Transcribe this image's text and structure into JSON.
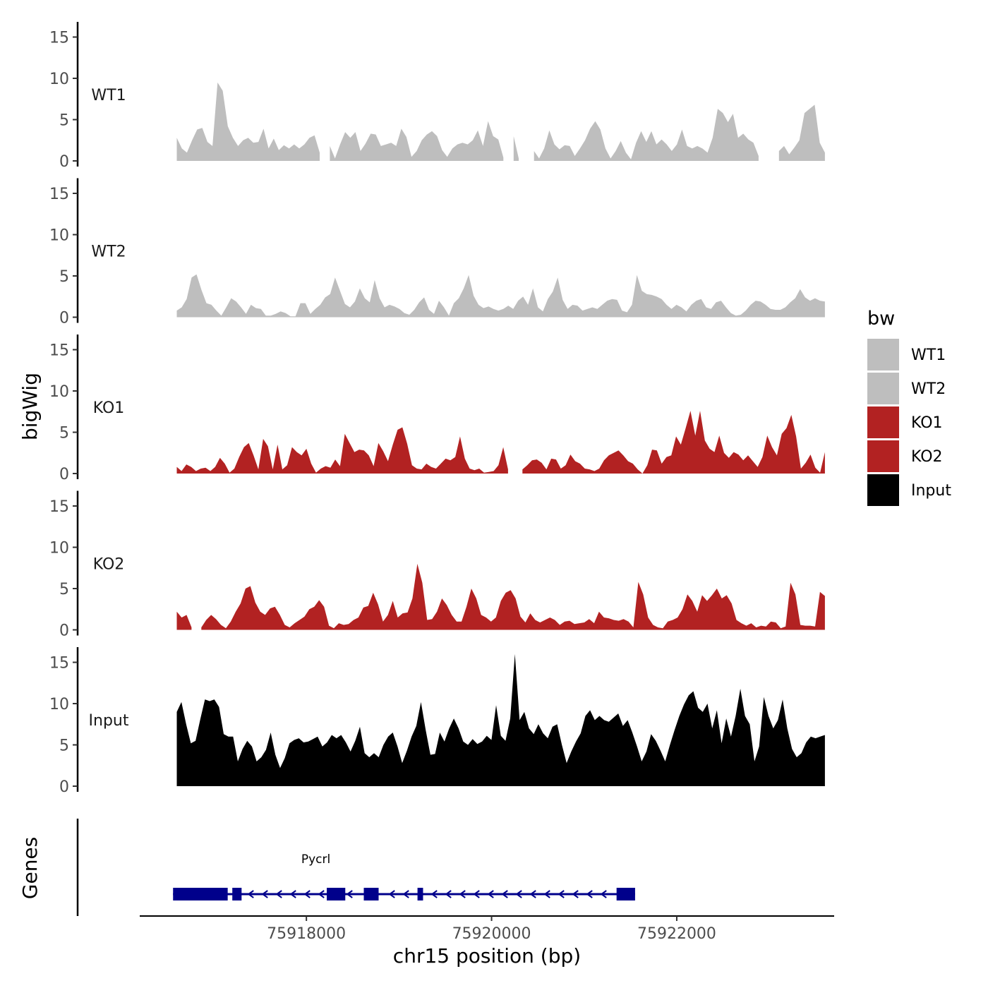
{
  "chart_data": {
    "type": "area",
    "title": "",
    "ylabel": "bigWig",
    "xlabel": "chr15 position (bp)",
    "genes_label": "Genes",
    "chromosome": "chr15",
    "xlim": [
      75916200,
      75923700
    ],
    "data_range": [
      75916600,
      75923600
    ],
    "ylim": [
      0,
      16.5
    ],
    "yticks": [
      0,
      5,
      10,
      15
    ],
    "xticks": [
      75918000,
      75920000,
      75922000
    ],
    "xtick_labels": [
      "75918000",
      "75920000",
      "75922000"
    ],
    "legend": {
      "title": "bw",
      "position": "right",
      "items": [
        {
          "label": "WT1",
          "color": "#bebebe"
        },
        {
          "label": "WT2",
          "color": "#bebebe"
        },
        {
          "label": "KO1",
          "color": "#b22222"
        },
        {
          "label": "KO2",
          "color": "#b22222"
        },
        {
          "label": "Input",
          "color": "#000000"
        }
      ]
    },
    "series": [
      {
        "name": "WT1",
        "color": "#bebebe",
        "x_start": 75916600,
        "x_end": 75923600,
        "values": [
          2.8,
          1.5,
          1.0,
          2.5,
          3.8,
          4.0,
          2.3,
          1.8,
          9.5,
          8.5,
          4.2,
          2.8,
          1.8,
          2.5,
          2.8,
          2.2,
          2.3,
          3.9,
          1.5,
          2.7,
          1.3,
          1.9,
          1.5,
          2.0,
          1.5,
          2.0,
          2.8,
          3.1,
          1.0,
          null,
          1.8,
          0.3,
          2.0,
          3.5,
          2.8,
          3.5,
          1.2,
          2.1,
          3.3,
          3.2,
          1.8,
          2.0,
          2.2,
          1.8,
          3.9,
          2.9,
          0.5,
          1.2,
          2.5,
          3.2,
          3.6,
          3.0,
          1.3,
          0.5,
          1.5,
          2.0,
          2.2,
          2.0,
          2.5,
          3.7,
          1.8,
          4.8,
          3.0,
          2.6,
          0.4,
          null,
          3.0,
          0.3,
          null,
          null,
          1.2,
          0.3,
          1.5,
          3.7,
          2.0,
          1.4,
          1.9,
          1.8,
          0.6,
          1.5,
          2.5,
          3.9,
          4.8,
          3.8,
          1.5,
          0.3,
          1.2,
          2.4,
          1.0,
          0.2,
          2.2,
          3.6,
          2.3,
          3.6,
          2.0,
          2.6,
          2.0,
          1.2,
          2.0,
          3.8,
          1.8,
          1.5,
          1.8,
          1.5,
          1.0,
          2.8,
          6.3,
          5.8,
          4.7,
          5.7,
          2.8,
          3.3,
          2.6,
          2.2,
          0.6,
          null,
          null,
          null,
          1.2,
          1.8,
          0.8,
          1.6,
          2.5,
          5.8,
          6.3,
          6.8,
          2.2,
          1.0
        ]
      },
      {
        "name": "WT2",
        "color": "#bebebe",
        "x_start": 75916600,
        "x_end": 75923600,
        "values": [
          0.8,
          1.2,
          2.2,
          4.8,
          5.2,
          3.3,
          1.7,
          1.5,
          0.8,
          0.2,
          1.2,
          2.3,
          1.9,
          1.2,
          0.4,
          1.5,
          1.1,
          1.0,
          0.2,
          0.2,
          0.4,
          0.7,
          0.5,
          0.1,
          0.1,
          1.7,
          1.7,
          0.4,
          1.0,
          1.5,
          2.4,
          2.8,
          4.8,
          3.2,
          1.6,
          1.2,
          1.9,
          3.5,
          2.3,
          1.8,
          4.5,
          2.3,
          1.2,
          1.5,
          1.3,
          1.0,
          0.5,
          0.3,
          0.9,
          1.8,
          2.4,
          0.9,
          0.4,
          2.0,
          1.2,
          0.2,
          1.7,
          2.3,
          3.5,
          5.1,
          2.6,
          1.5,
          1.1,
          1.3,
          1.0,
          0.8,
          1.0,
          1.4,
          1.0,
          2.0,
          2.5,
          1.5,
          3.5,
          1.2,
          0.7,
          2.2,
          3.1,
          4.8,
          2.1,
          1.0,
          1.5,
          1.4,
          0.8,
          1.0,
          1.2,
          1.0,
          1.5,
          2.0,
          2.2,
          2.1,
          0.8,
          0.6,
          1.5,
          5.1,
          3.2,
          2.8,
          2.7,
          2.5,
          2.2,
          1.5,
          1.0,
          1.5,
          1.2,
          0.7,
          1.5,
          2.0,
          2.2,
          1.2,
          1.0,
          1.8,
          2.0,
          1.2,
          0.5,
          0.2,
          0.3,
          0.8,
          1.5,
          2.0,
          1.9,
          1.5,
          1.0,
          0.9,
          0.9,
          1.2,
          1.8,
          2.3,
          3.4,
          2.4,
          2.0,
          2.3,
          2.0,
          1.9
        ]
      },
      {
        "name": "KO1",
        "color": "#b22222",
        "x_start": 75916600,
        "x_end": 75923600,
        "values": [
          0.8,
          0.3,
          1.1,
          0.8,
          0.3,
          0.6,
          0.7,
          0.3,
          0.8,
          1.9,
          1.2,
          0.1,
          0.6,
          2.0,
          3.2,
          3.7,
          2.2,
          0.5,
          4.2,
          3.3,
          0.5,
          3.5,
          0.5,
          1.0,
          3.2,
          2.6,
          2.2,
          3.0,
          1.2,
          0.1,
          0.6,
          0.9,
          0.7,
          1.7,
          0.9,
          4.8,
          3.7,
          2.6,
          2.9,
          2.8,
          2.2,
          0.9,
          3.7,
          2.7,
          1.5,
          3.5,
          5.3,
          5.6,
          3.6,
          1.0,
          0.6,
          0.5,
          1.2,
          0.8,
          0.6,
          1.2,
          1.8,
          1.6,
          2.0,
          4.5,
          1.8,
          0.6,
          0.4,
          0.6,
          0.1,
          0.2,
          0.3,
          1.0,
          3.2,
          0.5,
          null,
          null,
          0.5,
          1.0,
          1.6,
          1.7,
          1.3,
          0.5,
          1.8,
          1.7,
          0.6,
          1.0,
          2.3,
          1.5,
          1.2,
          0.6,
          0.5,
          0.3,
          0.6,
          1.6,
          2.2,
          2.5,
          2.8,
          2.2,
          1.5,
          1.2,
          0.5,
          0.0,
          1.0,
          2.9,
          2.8,
          1.2,
          2.0,
          2.2,
          4.5,
          3.5,
          5.5,
          7.6,
          4.6,
          7.6,
          4.0,
          3.0,
          2.6,
          4.6,
          2.5,
          1.9,
          2.6,
          2.3,
          1.6,
          2.2,
          1.5,
          0.8,
          2.0,
          4.6,
          3.2,
          2.2,
          4.8,
          5.5,
          7.1,
          4.5,
          0.6,
          1.3,
          2.3,
          0.7,
          0.1,
          2.6
        ]
      },
      {
        "name": "KO2",
        "color": "#b22222",
        "x_start": 75916600,
        "x_end": 75923600,
        "values": [
          2.2,
          1.5,
          1.8,
          0.3,
          null,
          0.3,
          1.2,
          1.8,
          1.3,
          0.6,
          0.2,
          1.0,
          2.2,
          3.2,
          5.0,
          5.3,
          3.3,
          2.2,
          1.8,
          2.6,
          2.8,
          1.8,
          0.6,
          0.3,
          0.8,
          1.2,
          1.6,
          2.5,
          2.8,
          3.6,
          2.8,
          0.5,
          0.2,
          0.8,
          0.6,
          0.7,
          1.2,
          1.5,
          2.7,
          2.9,
          4.5,
          3.1,
          1.0,
          1.8,
          3.5,
          1.5,
          2.0,
          2.1,
          3.8,
          8.0,
          5.7,
          1.2,
          1.3,
          2.2,
          3.8,
          3.0,
          1.8,
          1.0,
          1.0,
          2.8,
          5.0,
          3.8,
          1.8,
          1.5,
          1.0,
          1.5,
          3.5,
          4.5,
          4.8,
          3.8,
          1.6,
          0.9,
          2.0,
          1.2,
          0.9,
          1.2,
          1.5,
          1.2,
          0.6,
          1.0,
          1.1,
          0.7,
          0.8,
          0.9,
          1.3,
          0.8,
          2.2,
          1.5,
          1.4,
          1.2,
          1.1,
          1.3,
          1.0,
          0.3,
          5.8,
          4.3,
          1.5,
          0.6,
          0.3,
          0.2,
          1.0,
          1.2,
          1.5,
          2.5,
          4.3,
          3.5,
          2.2,
          4.2,
          3.5,
          4.2,
          5.0,
          3.8,
          4.2,
          3.2,
          1.2,
          0.8,
          0.5,
          0.8,
          0.3,
          0.5,
          0.4,
          1.0,
          0.9,
          0.2,
          0.4,
          5.7,
          4.3,
          0.6,
          0.5,
          0.5,
          0.4,
          4.6,
          4.1
        ]
      },
      {
        "name": "Input",
        "color": "#000000",
        "x_start": 75916600,
        "x_end": 75923600,
        "values": [
          9.0,
          10.2,
          7.5,
          5.2,
          5.5,
          8.1,
          10.5,
          10.3,
          10.5,
          9.6,
          6.3,
          6.0,
          6.0,
          3.0,
          4.5,
          5.5,
          4.8,
          3.0,
          3.5,
          4.4,
          6.5,
          3.8,
          2.2,
          3.4,
          5.2,
          5.6,
          5.8,
          5.3,
          5.4,
          5.7,
          6.0,
          4.8,
          5.3,
          6.2,
          5.8,
          6.2,
          5.3,
          4.2,
          5.5,
          7.2,
          4.0,
          3.5,
          4.0,
          3.5,
          5.0,
          6.0,
          6.5,
          4.8,
          2.8,
          4.3,
          6.0,
          7.3,
          10.2,
          6.8,
          3.8,
          3.9,
          6.5,
          5.4,
          7.0,
          8.2,
          7.0,
          5.4,
          5.0,
          5.7,
          5.1,
          5.4,
          6.1,
          5.6,
          9.8,
          6.1,
          5.5,
          8.2,
          16.0,
          8.0,
          9.0,
          7.0,
          6.3,
          7.5,
          6.4,
          5.8,
          7.2,
          7.5,
          5.0,
          2.8,
          4.2,
          5.4,
          6.4,
          8.5,
          9.2,
          8.0,
          8.5,
          8.0,
          7.8,
          8.3,
          8.8,
          7.3,
          8.0,
          6.5,
          4.8,
          3.0,
          4.2,
          6.3,
          5.5,
          4.3,
          3.0,
          5.0,
          6.8,
          8.5,
          9.9,
          11.0,
          11.5,
          9.5,
          9.0,
          10.0,
          7.0,
          9.2,
          5.2,
          8.2,
          6.0,
          8.5,
          11.8,
          8.5,
          7.5,
          3.0,
          4.8,
          10.8,
          8.5,
          7.0,
          8.0,
          10.5,
          7.0,
          4.5,
          3.5,
          4.0,
          5.3,
          6.0,
          5.8,
          6.0,
          6.2
        ]
      }
    ],
    "genes": [
      {
        "name": "Pycrl",
        "strand": "-",
        "start": 75916560,
        "end": 75921550,
        "exons": [
          [
            75916560,
            75917150
          ],
          [
            75917200,
            75917300
          ],
          [
            75918220,
            75918420
          ],
          [
            75918620,
            75918780
          ],
          [
            75919200,
            75919260
          ],
          [
            75921350,
            75921550
          ]
        ]
      }
    ]
  }
}
